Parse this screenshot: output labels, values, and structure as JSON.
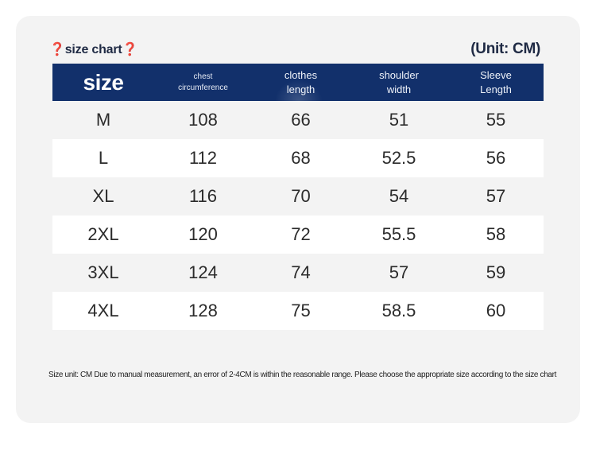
{
  "title": "❓size chart❓",
  "unit": "(Unit: CM)",
  "header": {
    "size": "size",
    "chest": [
      "chest",
      "circumference"
    ],
    "clothes": [
      "clothes",
      "length"
    ],
    "shoulder": [
      "shoulder",
      "width"
    ],
    "sleeve": [
      "Sleeve",
      "Length"
    ]
  },
  "rows": [
    [
      "M",
      "108",
      "66",
      "51",
      "55"
    ],
    [
      "L",
      "112",
      "68",
      "52.5",
      "56"
    ],
    [
      "XL",
      "116",
      "70",
      "54",
      "57"
    ],
    [
      "2XL",
      "120",
      "72",
      "55.5",
      "58"
    ],
    [
      "3XL",
      "124",
      "74",
      "57",
      "59"
    ],
    [
      "4XL",
      "128",
      "75",
      "58.5",
      "60"
    ]
  ],
  "note": "Size unit: CM Due to manual measurement, an error of 2-4CM is within the reasonable range. Please choose the appropriate size according to the size chart",
  "colors": {
    "header_bg": "#12306b",
    "card_bg": "#f3f3f3",
    "stripe": "#ffffff"
  }
}
